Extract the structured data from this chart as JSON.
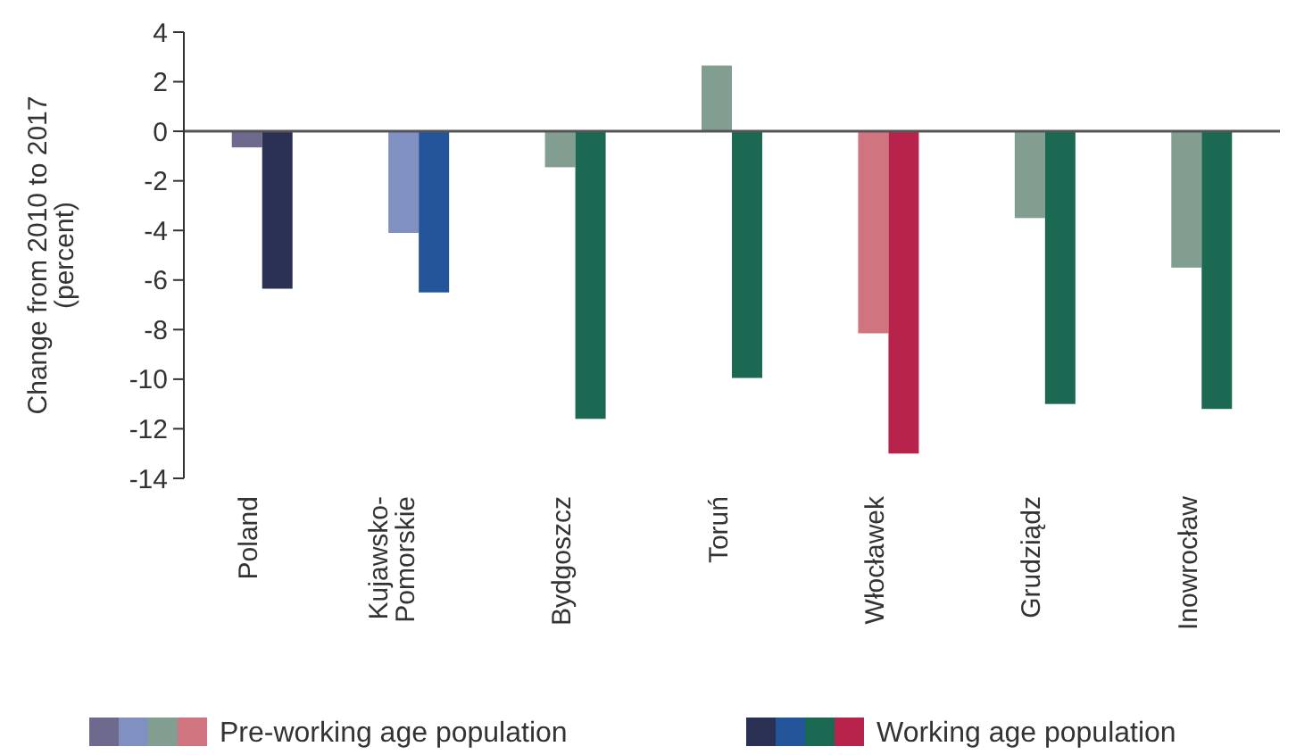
{
  "chart_data": {
    "type": "bar",
    "ylabel": "Change from 2010 to 2017 (percent)",
    "categories": [
      "Poland",
      "Kujawsko-Pomorskie",
      "Bydgoszcz",
      "Toruń",
      "Włocławek",
      "Grudziądz",
      "Inowrocław"
    ],
    "series": [
      {
        "name": "Pre-working age population",
        "colors": [
          "#6e6a8e",
          "#8090c0",
          "#829e91",
          "#829e91",
          "#d07480",
          "#829e91",
          "#829e91"
        ],
        "values": [
          -0.65,
          -4.1,
          -1.45,
          2.65,
          -8.15,
          -3.5,
          -5.5
        ]
      },
      {
        "name": "Working age population",
        "colors": [
          "#2b3154",
          "#245499",
          "#1b6853",
          "#1b6853",
          "#b8234c",
          "#1b6853",
          "#1b6853"
        ],
        "values": [
          -6.35,
          -6.5,
          -11.6,
          -9.95,
          -13.0,
          -11.0,
          -11.2
        ]
      }
    ],
    "ylim": [
      -14,
      4
    ],
    "yticks": [
      -14,
      -12,
      -10,
      -8,
      -6,
      -4,
      -2,
      0,
      2,
      4
    ],
    "legend": "bottom",
    "grid": false,
    "ref_lines": [
      {
        "axis": "y",
        "value": 0,
        "color": "#555555"
      }
    ]
  }
}
